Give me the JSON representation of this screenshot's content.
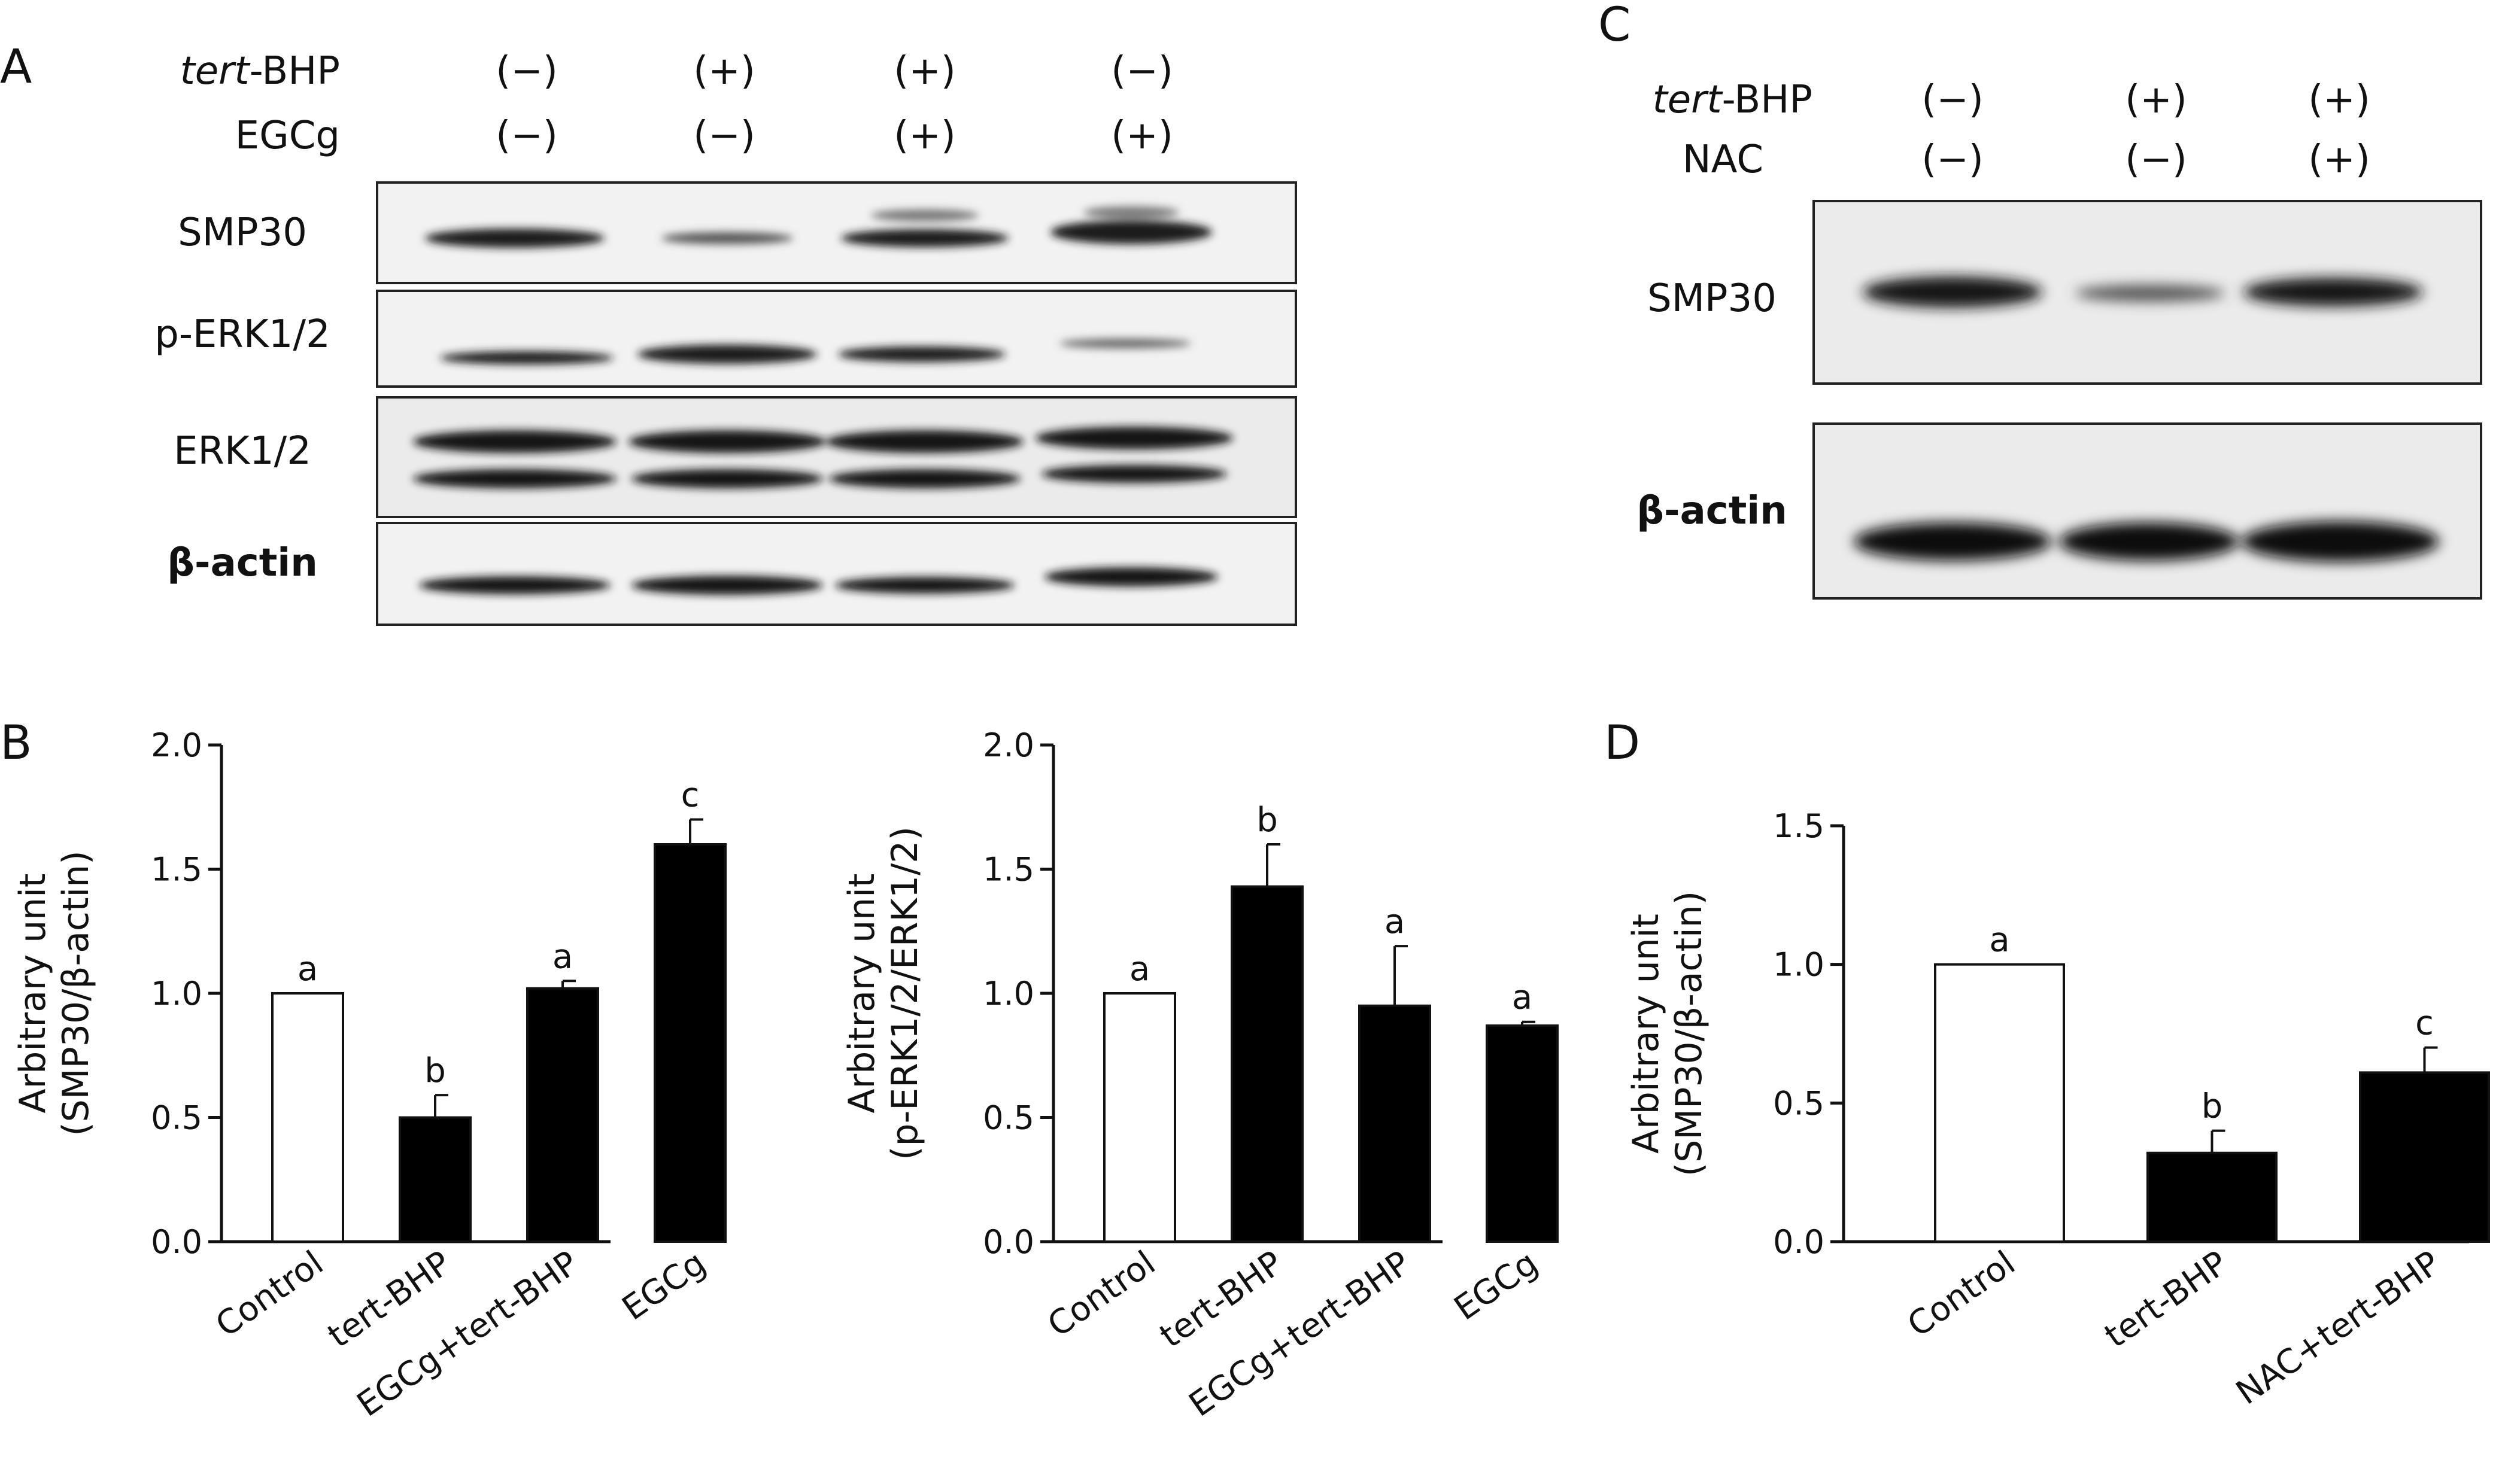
{
  "panel_labels": {
    "A": "A",
    "B": "B",
    "C": "C",
    "D": "D"
  },
  "panel_a": {
    "conditions": [
      {
        "name_italic": "tert",
        "name_rest": "-BHP",
        "signs": [
          "(−)",
          "(+)",
          "(+)",
          "(−)"
        ]
      },
      {
        "name_italic": "",
        "name_rest": "EGCg",
        "signs": [
          "(−)",
          "(−)",
          "(+)",
          "(+)"
        ]
      }
    ],
    "rows": [
      "SMP30",
      "p-ERK1/2",
      "ERK1/2",
      "β-actin"
    ]
  },
  "panel_c": {
    "conditions": [
      {
        "name_italic": "tert",
        "name_rest": "-BHP",
        "signs": [
          "(−)",
          "(+)",
          "(+)"
        ]
      },
      {
        "name_italic": "",
        "name_rest": "NAC",
        "signs": [
          "(−)",
          "(−)",
          "(+)"
        ]
      }
    ],
    "rows": [
      "SMP30",
      "β-actin"
    ]
  },
  "chart_data": [
    {
      "type": "bar",
      "panel": "B",
      "categories": [
        "Control",
        "tert-BHP",
        "EGCg+tert-BHP",
        "EGCg"
      ],
      "values": [
        1.0,
        0.5,
        1.02,
        1.6
      ],
      "errors": [
        0.0,
        0.09,
        0.03,
        0.1
      ],
      "significance": [
        "a",
        "b",
        "a",
        "c"
      ],
      "bar_colors": [
        "#ffffff",
        "#000000",
        "#000000",
        "#000000"
      ],
      "ylabel_line1": "Arbitrary unit",
      "ylabel_line2": "(SMP30/β-actin)",
      "ylim": [
        0,
        2.0
      ],
      "yticks": [
        "0.0",
        "0.5",
        "1.0",
        "1.5",
        "2.0"
      ]
    },
    {
      "type": "bar",
      "panel": "B",
      "categories": [
        "Control",
        "tert-BHP",
        "EGCg+tert-BHP",
        "EGCg"
      ],
      "values": [
        1.0,
        1.43,
        0.95,
        0.87
      ],
      "errors": [
        0.0,
        0.17,
        0.24,
        0.015
      ],
      "significance": [
        "a",
        "b",
        "a",
        "a"
      ],
      "bar_colors": [
        "#ffffff",
        "#000000",
        "#000000",
        "#000000"
      ],
      "ylabel_line1": "Arbitrary unit",
      "ylabel_line2": "(p-ERK1/2/ERK1/2)",
      "ylim": [
        0,
        2.0
      ],
      "yticks": [
        "0.0",
        "0.5",
        "1.0",
        "1.5",
        "2.0"
      ]
    },
    {
      "type": "bar",
      "panel": "D",
      "categories": [
        "Control",
        "tert-BHP",
        "NAC+tert-BHP"
      ],
      "values": [
        1.0,
        0.32,
        0.61
      ],
      "errors": [
        0.0,
        0.08,
        0.09
      ],
      "significance": [
        "a",
        "b",
        "c"
      ],
      "bar_colors": [
        "#ffffff",
        "#000000",
        "#000000"
      ],
      "ylabel_line1": "Arbitrary unit",
      "ylabel_line2": "(SMP30/β-actin)",
      "ylim": [
        0,
        1.5
      ],
      "yticks": [
        "0.0",
        "0.5",
        "1.0",
        "1.5"
      ]
    }
  ]
}
